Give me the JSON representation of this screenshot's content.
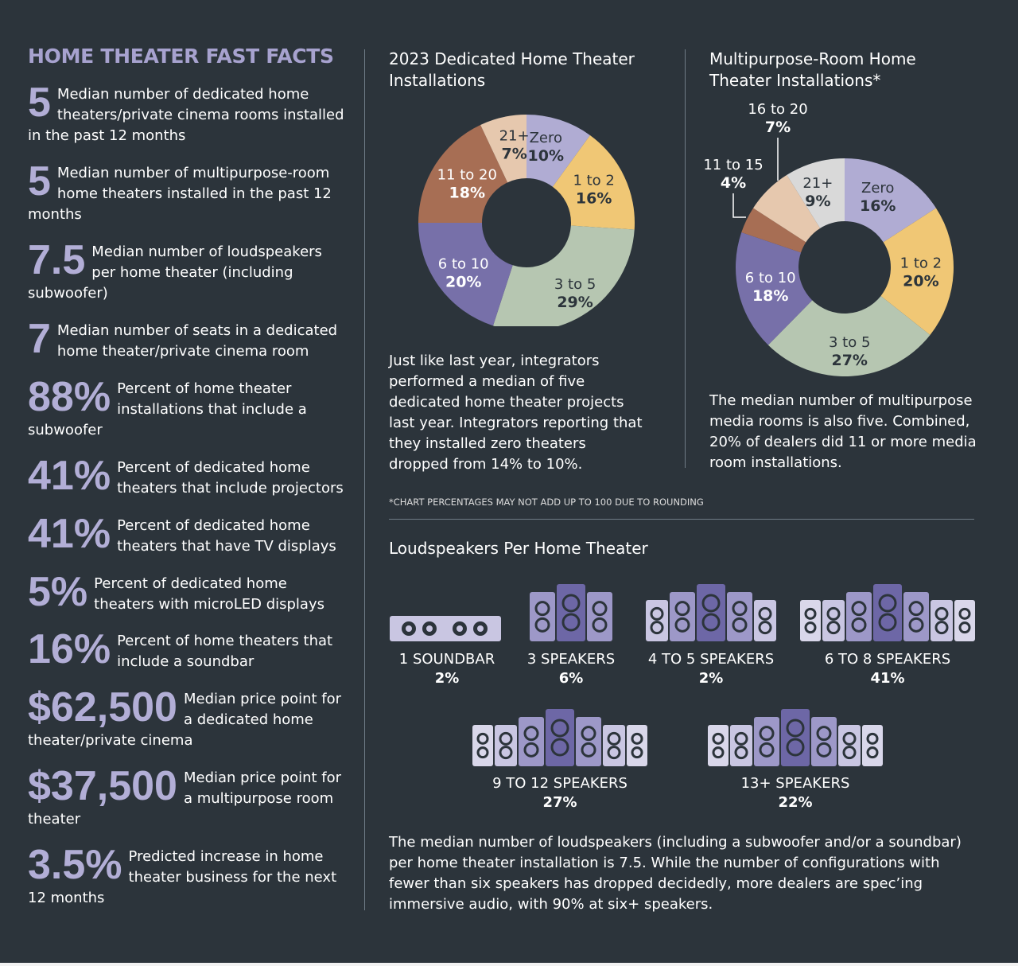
{
  "facts": {
    "title": "HOME THEATER FAST FACTS",
    "items": [
      {
        "number": "5",
        "text": "Median number of dedicated home theaters/private cinema rooms installed in the past 12 months"
      },
      {
        "number": "5",
        "text": "Median number of multipurpose-room home theaters installed in the past 12 months"
      },
      {
        "number": "7.5",
        "text": "Median number of loudspeakers per home theater (including subwoofer)"
      },
      {
        "number": "7",
        "text": "Median number of seats in a dedicated home theater/private cinema room"
      },
      {
        "number": "88%",
        "text": "Percent of home theater installations that include a subwoofer"
      },
      {
        "number": "41%",
        "text": "Percent of dedicated home theaters that include projectors"
      },
      {
        "number": "41%",
        "text": "Percent of dedicated home theaters that have TV displays"
      },
      {
        "number": "5%",
        "text": "Percent of dedicated home theaters with microLED displays"
      },
      {
        "number": "16%",
        "text": "Percent of home theaters that include a soundbar"
      },
      {
        "number": "$62,500",
        "text": "Median price point for a dedicated home theater/private cinema"
      },
      {
        "number": "$37,500",
        "text": "Median price point for a multipurpose room theater"
      },
      {
        "number": "3.5%",
        "text": "Predicted increase in home theater business for the next 12 months"
      }
    ]
  },
  "dedicated": {
    "title_line1": "2023 Dedicated Home Theater",
    "title_line2": "Installations",
    "paragraph": "Just like last year, integrators performed a median of five dedicated home theater projects last year. Integrators reporting that they installed zero theaters dropped from 14% to 10%."
  },
  "multipurpose": {
    "title_line1": "Multipurpose-Room Home",
    "title_line2": "Theater Installations*",
    "paragraph": "The median number of multipurpose media rooms is also five. Combined, 20% of dealers did 11 or more media room installations."
  },
  "footnote": "*CHART PERCENTAGES MAY NOT ADD UP TO 100 DUE TO ROUNDING",
  "loudspeakers": {
    "title": "Loudspeakers Per Home Theater",
    "paragraph": "The median number of loudspeakers (including a subwoofer and/or a soundbar) per home theater installation is 7.5. While the number of configurations with fewer than six speakers has dropped decidedly, more dealers are spec’ing immersive audio, with 90% at six+ speakers."
  },
  "colors": {
    "background": "#2c343b",
    "accent": "#a7a2cf",
    "zero": "#b0acd3",
    "one_to_two": "#f0c775",
    "three_to_five": "#b6c6b1",
    "six_to_ten": "#7770a9",
    "eleven_to_twenty": "#a76e54",
    "eleven_to_fifteen": "#a76e54",
    "sixteen_to_twenty": "#e6c8ae",
    "twenty_one_plus_dedicated": "#e6c8ae",
    "twenty_one_plus_multi": "#d9d9d9"
  },
  "chart_data": [
    {
      "type": "pie",
      "title": "2023 Dedicated Home Theater Installations",
      "categories": [
        "Zero",
        "1 to 2",
        "3 to 5",
        "6 to 10",
        "11 to 20",
        "21+"
      ],
      "values": [
        10,
        16,
        29,
        20,
        18,
        7
      ],
      "labels": [
        "10%",
        "16%",
        "29%",
        "20%",
        "18%",
        "7%"
      ]
    },
    {
      "type": "pie",
      "title": "Multipurpose-Room Home Theater Installations*",
      "categories": [
        "Zero",
        "1 to 2",
        "3 to 5",
        "6 to 10",
        "11 to 15",
        "16 to 20",
        "21+"
      ],
      "values": [
        16,
        20,
        27,
        18,
        4,
        7,
        9
      ],
      "labels": [
        "16%",
        "20%",
        "27%",
        "18%",
        "4%",
        "7%",
        "9%"
      ]
    },
    {
      "type": "bar",
      "title": "Loudspeakers Per Home Theater",
      "categories": [
        "1 SOUNDBAR",
        "3 SPEAKERS",
        "4 TO 5 SPEAKERS",
        "6 TO 8 SPEAKERS",
        "9 TO 12 SPEAKERS",
        "13+ SPEAKERS"
      ],
      "values": [
        2,
        6,
        2,
        41,
        27,
        22
      ],
      "labels": [
        "2%",
        "6%",
        "2%",
        "41%",
        "27%",
        "22%"
      ]
    }
  ]
}
